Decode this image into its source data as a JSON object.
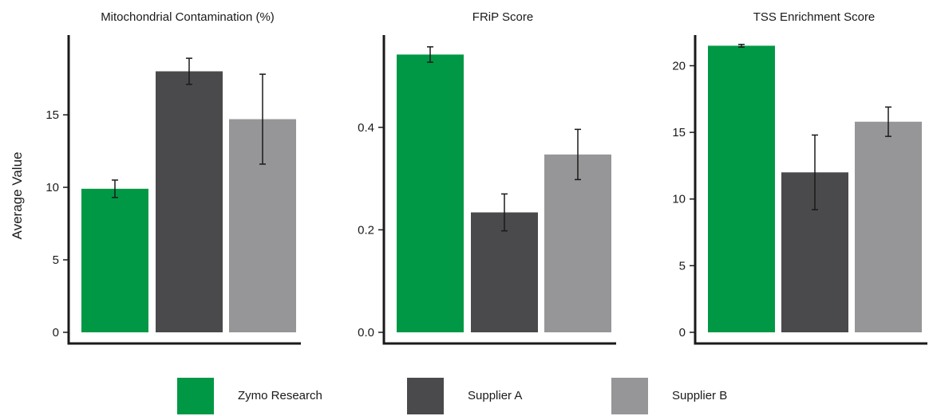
{
  "chart_data": [
    {
      "type": "bar",
      "title": "Mitochondrial Contamination (%)",
      "ylabel": "Average Value",
      "categories": [
        "Zymo Research",
        "Supplier A",
        "Supplier B"
      ],
      "values": [
        9.9,
        18.0,
        14.7
      ],
      "errors": [
        0.6,
        0.9,
        3.1
      ],
      "ylim": [
        0,
        20.5
      ],
      "yticks": [
        0,
        5,
        10,
        15
      ],
      "ytick_labels": [
        "0",
        "5",
        "10",
        "15"
      ],
      "grid": false
    },
    {
      "type": "bar",
      "title": "FRiP Score",
      "ylabel": "",
      "categories": [
        "Zymo Research",
        "Supplier A",
        "Supplier B"
      ],
      "values": [
        0.542,
        0.234,
        0.347
      ],
      "errors": [
        0.015,
        0.036,
        0.049
      ],
      "ylim": [
        0,
        0.58
      ],
      "yticks": [
        0.0,
        0.2,
        0.4
      ],
      "ytick_labels": [
        "0.0",
        "0.2",
        "0.4"
      ],
      "grid": false
    },
    {
      "type": "bar",
      "title": "TSS Enrichment Score",
      "ylabel": "",
      "categories": [
        "Zymo Research",
        "Supplier A",
        "Supplier B"
      ],
      "values": [
        21.5,
        12.0,
        15.8
      ],
      "errors": [
        0.1,
        2.8,
        1.1
      ],
      "ylim": [
        0,
        22.3
      ],
      "yticks": [
        0,
        5,
        10,
        15,
        20
      ],
      "ytick_labels": [
        "0",
        "5",
        "10",
        "15",
        "20"
      ],
      "grid": false
    }
  ],
  "legend": {
    "placement": "bottom",
    "items": [
      {
        "label": "Zymo Research",
        "color": "#009845"
      },
      {
        "label": "Supplier A",
        "color": "#4a494b"
      },
      {
        "label": "Supplier B",
        "color": "#969698"
      }
    ]
  }
}
